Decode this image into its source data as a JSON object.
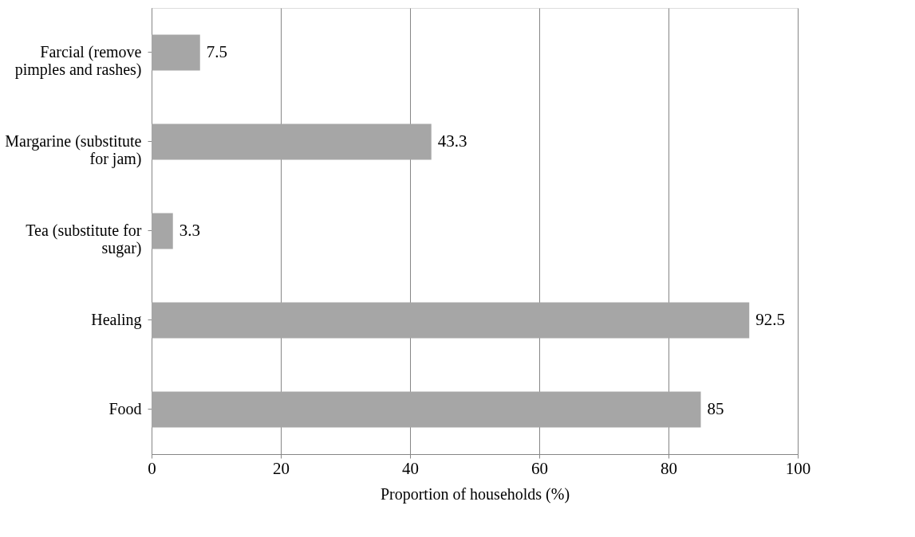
{
  "chart_data": {
    "type": "bar",
    "orientation": "horizontal",
    "xlabel": "Proportion of households (%)",
    "categories": [
      "Farcial (remove pimples and rashes)",
      "Margarine (substitute for jam)",
      "Tea (substitute for sugar)",
      "Healing",
      "Food"
    ],
    "values": [
      7.5,
      43.3,
      3.3,
      92.5,
      85
    ],
    "color": "#a6a6a6",
    "xlim": [
      0,
      100
    ],
    "xticks": [
      0,
      20,
      40,
      60,
      80,
      100
    ],
    "grid": "x",
    "data_labels": true
  }
}
